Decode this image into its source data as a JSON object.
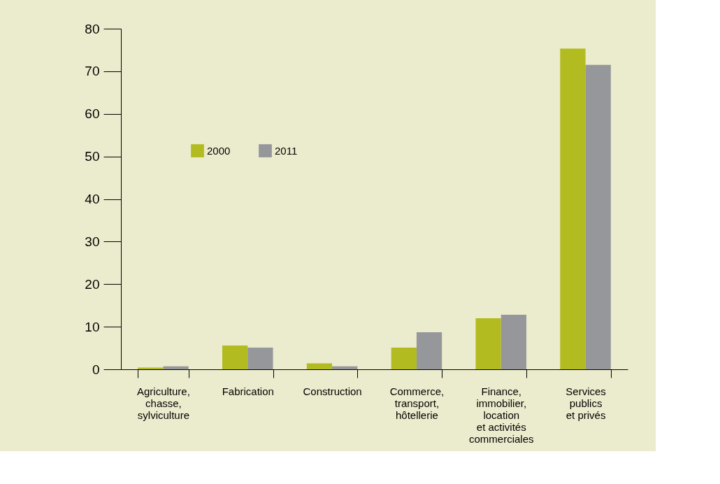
{
  "chart_data": {
    "type": "bar",
    "categories": [
      "Agriculture,\nchasse,\nsylviculture",
      "Fabrication",
      "Construction",
      "Commerce,\ntransport,\nhôtellerie",
      "Finance,\nimmobilier,\nlocation\net activités\ncommerciales",
      "Services\npublics\net privés"
    ],
    "series": [
      {
        "name": "2000",
        "color": "#b2bb1f",
        "values": [
          0.4,
          5.6,
          1.4,
          5.1,
          12.0,
          75.3
        ]
      },
      {
        "name": "2011",
        "color": "#96979a",
        "values": [
          0.7,
          5.1,
          0.7,
          8.7,
          12.8,
          71.5
        ]
      }
    ],
    "ylim": [
      0,
      80
    ],
    "yticks": [
      0,
      10,
      20,
      30,
      40,
      50,
      60,
      70,
      80
    ],
    "grid": false,
    "legend": "top left"
  }
}
